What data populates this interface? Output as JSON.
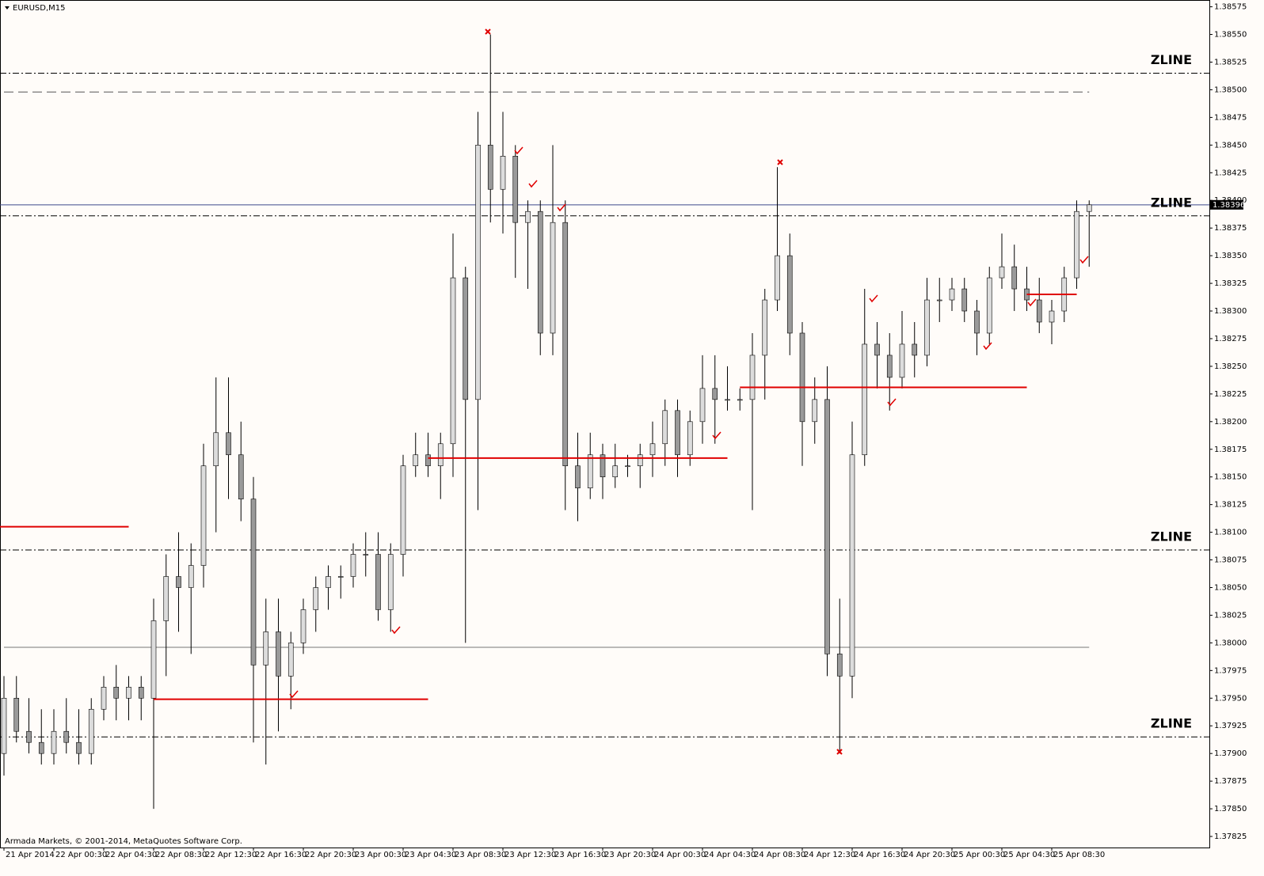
{
  "chart_data": {
    "type": "candlestick",
    "title": "EURUSD,M15",
    "footer": "Armada Markets, © 2001-2014, MetaQuotes Software Corp.",
    "categories": [
      "21 Apr 2014",
      null,
      null,
      null,
      "22 Apr 00:30",
      null,
      null,
      null,
      "22 Apr 04:30",
      null,
      null,
      null,
      "22 Apr 08:30",
      null,
      null,
      null,
      "22 Apr 12:30",
      null,
      null,
      null,
      "22 Apr 16:30",
      null,
      null,
      null,
      "22 Apr 20:30",
      null,
      null,
      null,
      "23 Apr 00:30",
      null,
      null,
      null,
      "23 Apr 04:30",
      null,
      null,
      null,
      "23 Apr 08:30",
      null,
      null,
      null,
      "23 Apr 12:30",
      null,
      null,
      null,
      "23 Apr 16:30",
      null,
      null,
      null,
      "23 Apr 20:30",
      null,
      null,
      null,
      "24 Apr 00:30",
      null,
      null,
      null,
      "24 Apr 04:30",
      null,
      null,
      null,
      "24 Apr 08:30",
      null,
      null,
      null,
      "24 Apr 12:30",
      null,
      null,
      null,
      "24 Apr 16:30",
      null,
      null,
      null,
      "24 Apr 20:30",
      null,
      null,
      null,
      "25 Apr 00:30",
      null,
      null,
      null,
      "25 Apr 04:30",
      null,
      null,
      null,
      "25 Apr 08:30",
      null,
      null,
      null
    ],
    "open": [
      1.379,
      1.3795,
      1.3792,
      1.3791,
      1.379,
      1.3792,
      1.3791,
      1.379,
      1.3794,
      1.3796,
      1.3795,
      1.3796,
      1.3795,
      1.3802,
      1.3806,
      1.3805,
      1.3807,
      1.3816,
      1.3819,
      1.3817,
      1.3813,
      1.3798,
      1.3801,
      1.3797,
      1.38,
      1.3803,
      1.3805,
      1.3806,
      1.3806,
      1.3808,
      1.3808,
      1.3803,
      1.3808,
      1.3816,
      1.3817,
      1.3816,
      1.3818,
      1.3833,
      1.3822,
      1.3845,
      1.3841,
      1.3844,
      1.3838,
      1.3839,
      1.3828,
      1.3838,
      1.3816,
      1.3814,
      1.3817,
      1.3815,
      1.3816,
      1.3816,
      1.3817,
      1.3818,
      1.3821,
      1.3817,
      1.382,
      1.3823,
      1.3822,
      1.3822,
      1.3822,
      1.3826,
      1.3831,
      1.3835,
      1.3828,
      1.382,
      1.3822,
      1.3799,
      1.3797,
      1.3817,
      1.3827,
      1.3826,
      1.3824,
      1.3827,
      1.3826,
      1.3831,
      1.3831,
      1.3832,
      1.383,
      1.3828,
      1.3833,
      1.3834,
      1.3832,
      1.3831,
      1.3829,
      1.383,
      1.3833,
      1.3839
    ],
    "high": [
      1.3797,
      1.3797,
      1.3795,
      1.3794,
      1.3794,
      1.3795,
      1.3794,
      1.3795,
      1.3797,
      1.3798,
      1.3797,
      1.3797,
      1.3804,
      1.3808,
      1.381,
      1.3809,
      1.3818,
      1.3824,
      1.3824,
      1.382,
      1.3815,
      1.3804,
      1.3804,
      1.3801,
      1.3804,
      1.3806,
      1.3807,
      1.3807,
      1.3809,
      1.381,
      1.381,
      1.3809,
      1.3817,
      1.3819,
      1.3819,
      1.3819,
      1.3837,
      1.3834,
      1.3848,
      1.3855,
      1.3848,
      1.3845,
      1.384,
      1.384,
      1.3845,
      1.384,
      1.3819,
      1.3819,
      1.3818,
      1.3818,
      1.3817,
      1.3818,
      1.382,
      1.3822,
      1.3822,
      1.3821,
      1.3826,
      1.3826,
      1.3825,
      1.3823,
      1.3828,
      1.3832,
      1.3843,
      1.3837,
      1.3829,
      1.3824,
      1.3825,
      1.3804,
      1.382,
      1.3832,
      1.3829,
      1.3828,
      1.383,
      1.3829,
      1.3833,
      1.3833,
      1.3833,
      1.3833,
      1.3831,
      1.3834,
      1.3837,
      1.3836,
      1.3834,
      1.3833,
      1.3831,
      1.3834,
      1.384,
      1.384
    ],
    "low": [
      1.3788,
      1.3791,
      1.379,
      1.3789,
      1.3789,
      1.379,
      1.3789,
      1.3789,
      1.3793,
      1.3793,
      1.3793,
      1.3793,
      1.3785,
      1.3797,
      1.3801,
      1.3799,
      1.3805,
      1.381,
      1.3813,
      1.3811,
      1.3791,
      1.3789,
      1.3792,
      1.3794,
      1.3799,
      1.3801,
      1.3803,
      1.3804,
      1.3805,
      1.3806,
      1.3802,
      1.3801,
      1.3806,
      1.3815,
      1.3815,
      1.3813,
      1.3815,
      1.38,
      1.3812,
      1.3838,
      1.3837,
      1.3833,
      1.3832,
      1.3826,
      1.3826,
      1.3812,
      1.3811,
      1.3813,
      1.3813,
      1.3814,
      1.3815,
      1.3814,
      1.3815,
      1.3816,
      1.3815,
      1.3816,
      1.3818,
      1.3818,
      1.3821,
      1.3821,
      1.3812,
      1.3822,
      1.383,
      1.3826,
      1.3816,
      1.3818,
      1.3797,
      1.379,
      1.3795,
      1.3816,
      1.3823,
      1.3821,
      1.3823,
      1.3824,
      1.3825,
      1.3829,
      1.383,
      1.3829,
      1.3826,
      1.3827,
      1.3832,
      1.383,
      1.383,
      1.3828,
      1.3827,
      1.3829,
      1.3832,
      1.3834
    ],
    "close": [
      1.3795,
      1.3792,
      1.3791,
      1.379,
      1.3792,
      1.3791,
      1.379,
      1.3794,
      1.3796,
      1.3795,
      1.3796,
      1.3795,
      1.3802,
      1.3806,
      1.3805,
      1.3807,
      1.3816,
      1.3819,
      1.3817,
      1.3813,
      1.3798,
      1.3801,
      1.3797,
      1.38,
      1.3803,
      1.3805,
      1.3806,
      1.3806,
      1.3808,
      1.3808,
      1.3803,
      1.3808,
      1.3816,
      1.3817,
      1.3816,
      1.3818,
      1.3833,
      1.3822,
      1.3845,
      1.3841,
      1.3844,
      1.3838,
      1.3839,
      1.3828,
      1.3838,
      1.3816,
      1.3814,
      1.3817,
      1.3815,
      1.3816,
      1.3816,
      1.3817,
      1.3818,
      1.3821,
      1.3817,
      1.382,
      1.3823,
      1.3822,
      1.3822,
      1.3822,
      1.3826,
      1.3831,
      1.3835,
      1.3828,
      1.382,
      1.3822,
      1.3799,
      1.3797,
      1.3817,
      1.3827,
      1.3826,
      1.3824,
      1.3827,
      1.3826,
      1.3831,
      1.3831,
      1.3832,
      1.383,
      1.3828,
      1.3833,
      1.3834,
      1.3832,
      1.3831,
      1.3829,
      1.383,
      1.3833,
      1.3839,
      1.38396
    ],
    "up_color": "#dcdcdc",
    "down_color": "#9a9a9a",
    "ylim": [
      1.37815,
      1.38579
    ],
    "yticks": [
      1.38575,
      {
        "value": 1.3855,
        "label": "1.38550"
      },
      1.38525,
      {
        "value": 1.385,
        "label": "1.38500"
      },
      1.38475,
      {
        "value": 1.3845,
        "label": "1.38450"
      },
      1.38425,
      {
        "value": 1.384,
        "label": "1.38400"
      },
      1.38375,
      {
        "value": 1.3835,
        "label": "1.38350"
      },
      1.38325,
      {
        "value": 1.383,
        "label": "1.38300"
      },
      1.38275,
      {
        "value": 1.3825,
        "label": "1.38250"
      },
      1.38225,
      {
        "value": 1.382,
        "label": "1.38200"
      },
      1.38175,
      {
        "value": 1.3815,
        "label": "1.38150"
      },
      1.38125,
      {
        "value": 1.381,
        "label": "1.38100"
      },
      1.38075,
      {
        "value": 1.3805,
        "label": "1.38050"
      },
      1.38025,
      {
        "value": 1.38,
        "label": "1.38000"
      },
      1.37975,
      {
        "value": 1.3795,
        "label": "1.37950"
      },
      1.37925,
      {
        "value": 1.379,
        "label": "1.37900"
      },
      1.37875,
      {
        "value": 1.3785,
        "label": "1.37850"
      },
      1.37825
    ],
    "current_price": 1.38396,
    "zlines": [
      {
        "value": 1.38515,
        "label": "ZLINE"
      },
      {
        "value": 1.38386,
        "label": "ZLINE"
      },
      {
        "value": 1.38084,
        "label": "ZLINE"
      },
      {
        "value": 1.37915,
        "label": "ZLINE"
      }
    ],
    "red_levels": [
      {
        "value": 1.38105,
        "start": 0,
        "end": 10
      },
      {
        "value": 1.37949,
        "start": 12,
        "end": 34
      },
      {
        "value": 1.38167,
        "start": 34,
        "end": 58
      },
      {
        "value": 1.38231,
        "start": 59,
        "end": 82
      },
      {
        "value": 1.38315,
        "start": 82,
        "end": 86
      }
    ],
    "dashed_level": {
      "value": 1.38498,
      "start": 0,
      "end": 87
    },
    "gray_level": {
      "value": 1.37996,
      "start": 0,
      "end": 87
    }
  }
}
